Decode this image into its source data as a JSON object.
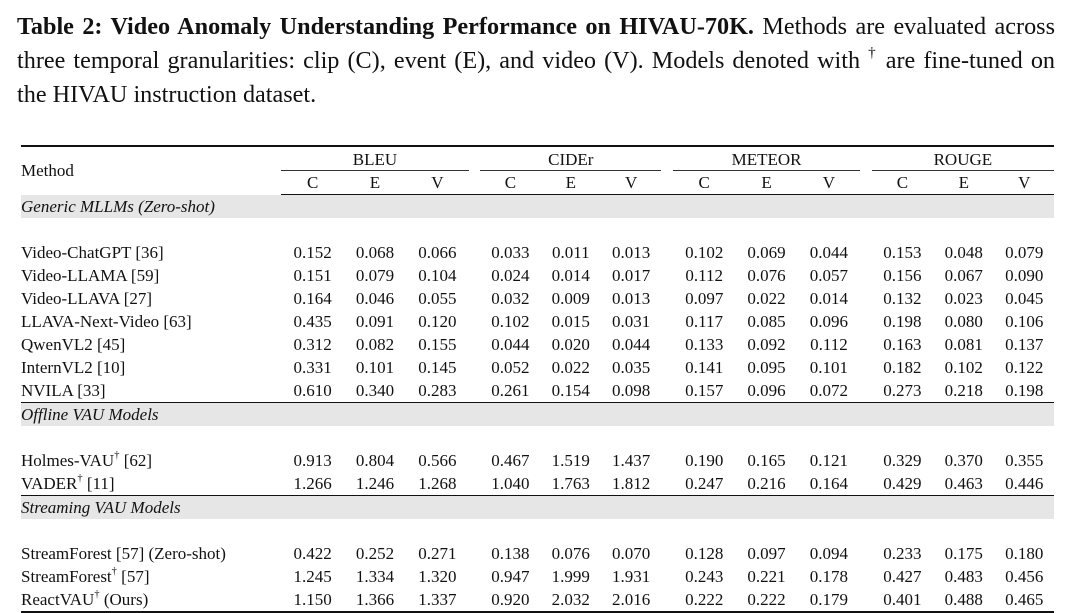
{
  "caption": {
    "title": "Table 2: Video Anomaly Understanding Performance on HIVAU-70K.",
    "body": "Methods are evaluated across three temporal granularities: clip (C), event (E), and video (V). Models denoted with",
    "dagger": "†",
    "tail": "are fine-tuned on the HIVAU instruction dataset."
  },
  "header": {
    "method": "Method",
    "metrics": [
      "BLEU",
      "CIDEr",
      "METEOR",
      "ROUGE"
    ],
    "granularities": [
      "C",
      "E",
      "V"
    ]
  },
  "groups": [
    {
      "title": "Generic MLLMs (Zero-shot)",
      "rows": [
        {
          "name": "Video-ChatGPT [36]",
          "values": [
            "0.152",
            "0.068",
            "0.066",
            "0.033",
            "0.011",
            "0.013",
            "0.102",
            "0.069",
            "0.044",
            "0.153",
            "0.048",
            "0.079"
          ]
        },
        {
          "name": "Video-LLAMA [59]",
          "values": [
            "0.151",
            "0.079",
            "0.104",
            "0.024",
            "0.014",
            "0.017",
            "0.112",
            "0.076",
            "0.057",
            "0.156",
            "0.067",
            "0.090"
          ]
        },
        {
          "name": "Video-LLAVA [27]",
          "values": [
            "0.164",
            "0.046",
            "0.055",
            "0.032",
            "0.009",
            "0.013",
            "0.097",
            "0.022",
            "0.014",
            "0.132",
            "0.023",
            "0.045"
          ]
        },
        {
          "name": "LLAVA-Next-Video [63]",
          "values": [
            "0.435",
            "0.091",
            "0.120",
            "0.102",
            "0.015",
            "0.031",
            "0.117",
            "0.085",
            "0.096",
            "0.198",
            "0.080",
            "0.106"
          ]
        },
        {
          "name": "QwenVL2 [45]",
          "values": [
            "0.312",
            "0.082",
            "0.155",
            "0.044",
            "0.020",
            "0.044",
            "0.133",
            "0.092",
            "0.112",
            "0.163",
            "0.081",
            "0.137"
          ]
        },
        {
          "name": "InternVL2 [10]",
          "values": [
            "0.331",
            "0.101",
            "0.145",
            "0.052",
            "0.022",
            "0.035",
            "0.141",
            "0.095",
            "0.101",
            "0.182",
            "0.102",
            "0.122"
          ]
        },
        {
          "name": "NVILA [33]",
          "values": [
            "0.610",
            "0.340",
            "0.283",
            "0.261",
            "0.154",
            "0.098",
            "0.157",
            "0.096",
            "0.072",
            "0.273",
            "0.218",
            "0.198"
          ]
        }
      ]
    },
    {
      "title": "Offline VAU Models",
      "rows": [
        {
          "name": "Holmes-VAU",
          "dagger": "†",
          "ref": "[62]",
          "values": [
            "0.913",
            "0.804",
            "0.566",
            "0.467",
            "1.519",
            "1.437",
            "0.190",
            "0.165",
            "0.121",
            "0.329",
            "0.370",
            "0.355"
          ]
        },
        {
          "name": "VADER",
          "dagger": "†",
          "ref": "[11]",
          "values": [
            "1.266",
            "1.246",
            "1.268",
            "1.040",
            "1.763",
            "1.812",
            "0.247",
            "0.216",
            "0.164",
            "0.429",
            "0.463",
            "0.446"
          ],
          "bold": [
            0,
            3,
            6,
            9
          ]
        }
      ]
    },
    {
      "title": "Streaming VAU Models",
      "rows": [
        {
          "name": "StreamForest [57] (Zero-shot)",
          "values": [
            "0.422",
            "0.252",
            "0.271",
            "0.138",
            "0.076",
            "0.070",
            "0.128",
            "0.097",
            "0.094",
            "0.233",
            "0.175",
            "0.180"
          ]
        },
        {
          "name": "StreamForest",
          "dagger": "†",
          "ref": "[57]",
          "values": [
            "1.245",
            "1.334",
            "1.320",
            "0.947",
            "1.999",
            "1.931",
            "0.243",
            "0.221",
            "0.178",
            "0.427",
            "0.483",
            "0.456"
          ]
        },
        {
          "name": "ReactVAU",
          "dagger": "†",
          "ref": "(Ours)",
          "values": [
            "1.150",
            "1.366",
            "1.337",
            "0.920",
            "2.032",
            "2.016",
            "0.222",
            "0.222",
            "0.179",
            "0.401",
            "0.488",
            "0.465"
          ],
          "bold": [
            1,
            2,
            4,
            5,
            7,
            8,
            10,
            11
          ],
          "bold_name": true
        }
      ]
    }
  ]
}
